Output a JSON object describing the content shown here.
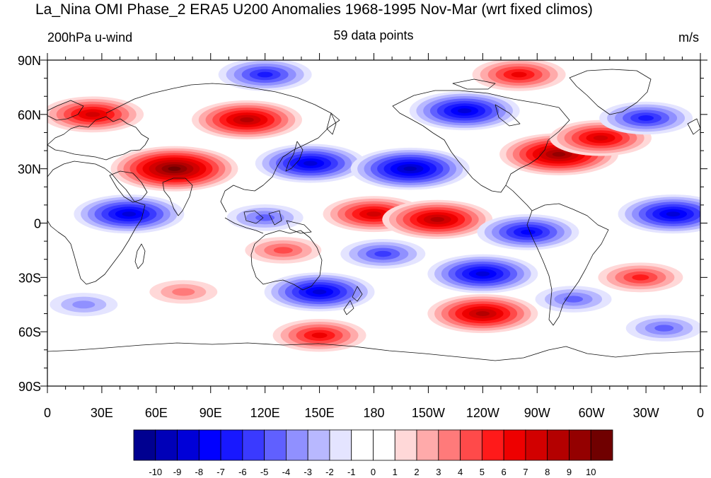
{
  "title": "La_Nina OMI Phase_2 ERA5 U200 Anomalies 1968-1995 Nov-Mar (wrt fixed climos)",
  "subtitle_left": "200hPa u-wind",
  "subtitle_center": "59 data points",
  "subtitle_right": "m/s",
  "lat_labels": [
    "90N",
    "60N",
    "30N",
    "0",
    "30S",
    "60S",
    "90S"
  ],
  "lon_labels": [
    "0",
    "30E",
    "60E",
    "90E",
    "120E",
    "150E",
    "180",
    "150W",
    "120W",
    "90W",
    "60W",
    "30W",
    "0"
  ],
  "colorbar": {
    "levels": [
      "-10",
      "-9",
      "-8",
      "-7",
      "-6",
      "-5",
      "-4",
      "-3",
      "-2",
      "-1",
      "0",
      "1",
      "2",
      "3",
      "4",
      "5",
      "6",
      "7",
      "8",
      "9",
      "10"
    ],
    "colors": [
      "#000090",
      "#0000b8",
      "#0000d8",
      "#0000ff",
      "#1818ff",
      "#3a3aff",
      "#6060ff",
      "#9090ff",
      "#b8b8ff",
      "#e4e4ff",
      "#ffffff",
      "#ffffff",
      "#ffd8d8",
      "#ffaaaa",
      "#ff7a7a",
      "#ff4a4a",
      "#ff1a1a",
      "#ee0000",
      "#d20000",
      "#b40000",
      "#940000",
      "#700000"
    ]
  },
  "chart_data": {
    "type": "heatmap",
    "title": "La_Nina OMI Phase_2 ERA5 U200 Anomalies 1968-1995 Nov-Mar (wrt fixed climos)",
    "variable": "200hPa u-wind",
    "units": "m/s",
    "n": "59 data points",
    "lon_range": [
      0,
      360
    ],
    "lat_range": [
      -90,
      90
    ],
    "anomaly_blobs": [
      {
        "lon": 110,
        "lat": 57,
        "value": 8
      },
      {
        "lon": 25,
        "lat": 60,
        "value": 7
      },
      {
        "lon": 70,
        "lat": 30,
        "value": 10
      },
      {
        "lon": 145,
        "lat": 33,
        "value": -8
      },
      {
        "lon": 200,
        "lat": 30,
        "value": -9
      },
      {
        "lon": 230,
        "lat": 62,
        "value": -8
      },
      {
        "lon": 282,
        "lat": 38,
        "value": 9
      },
      {
        "lon": 305,
        "lat": 47,
        "value": 7
      },
      {
        "lon": 45,
        "lat": 5,
        "value": -8
      },
      {
        "lon": 120,
        "lat": 3,
        "value": -4
      },
      {
        "lon": 180,
        "lat": 5,
        "value": 7
      },
      {
        "lon": 215,
        "lat": 2,
        "value": 8
      },
      {
        "lon": 345,
        "lat": 5,
        "value": -8
      },
      {
        "lon": 265,
        "lat": -5,
        "value": -7
      },
      {
        "lon": 130,
        "lat": -15,
        "value": 4
      },
      {
        "lon": 185,
        "lat": -17,
        "value": -5
      },
      {
        "lon": 240,
        "lat": -28,
        "value": -8
      },
      {
        "lon": 150,
        "lat": -38,
        "value": -8
      },
      {
        "lon": 240,
        "lat": -50,
        "value": 8
      },
      {
        "lon": 150,
        "lat": -62,
        "value": 6
      },
      {
        "lon": 327,
        "lat": -30,
        "value": 5
      },
      {
        "lon": 20,
        "lat": -45,
        "value": -3
      },
      {
        "lon": 75,
        "lat": -38,
        "value": 3
      },
      {
        "lon": 290,
        "lat": -42,
        "value": -4
      },
      {
        "lon": 340,
        "lat": -58,
        "value": -4
      },
      {
        "lon": 120,
        "lat": 82,
        "value": -6
      },
      {
        "lon": 260,
        "lat": 82,
        "value": 6
      },
      {
        "lon": 330,
        "lat": 58,
        "value": -6
      }
    ]
  }
}
